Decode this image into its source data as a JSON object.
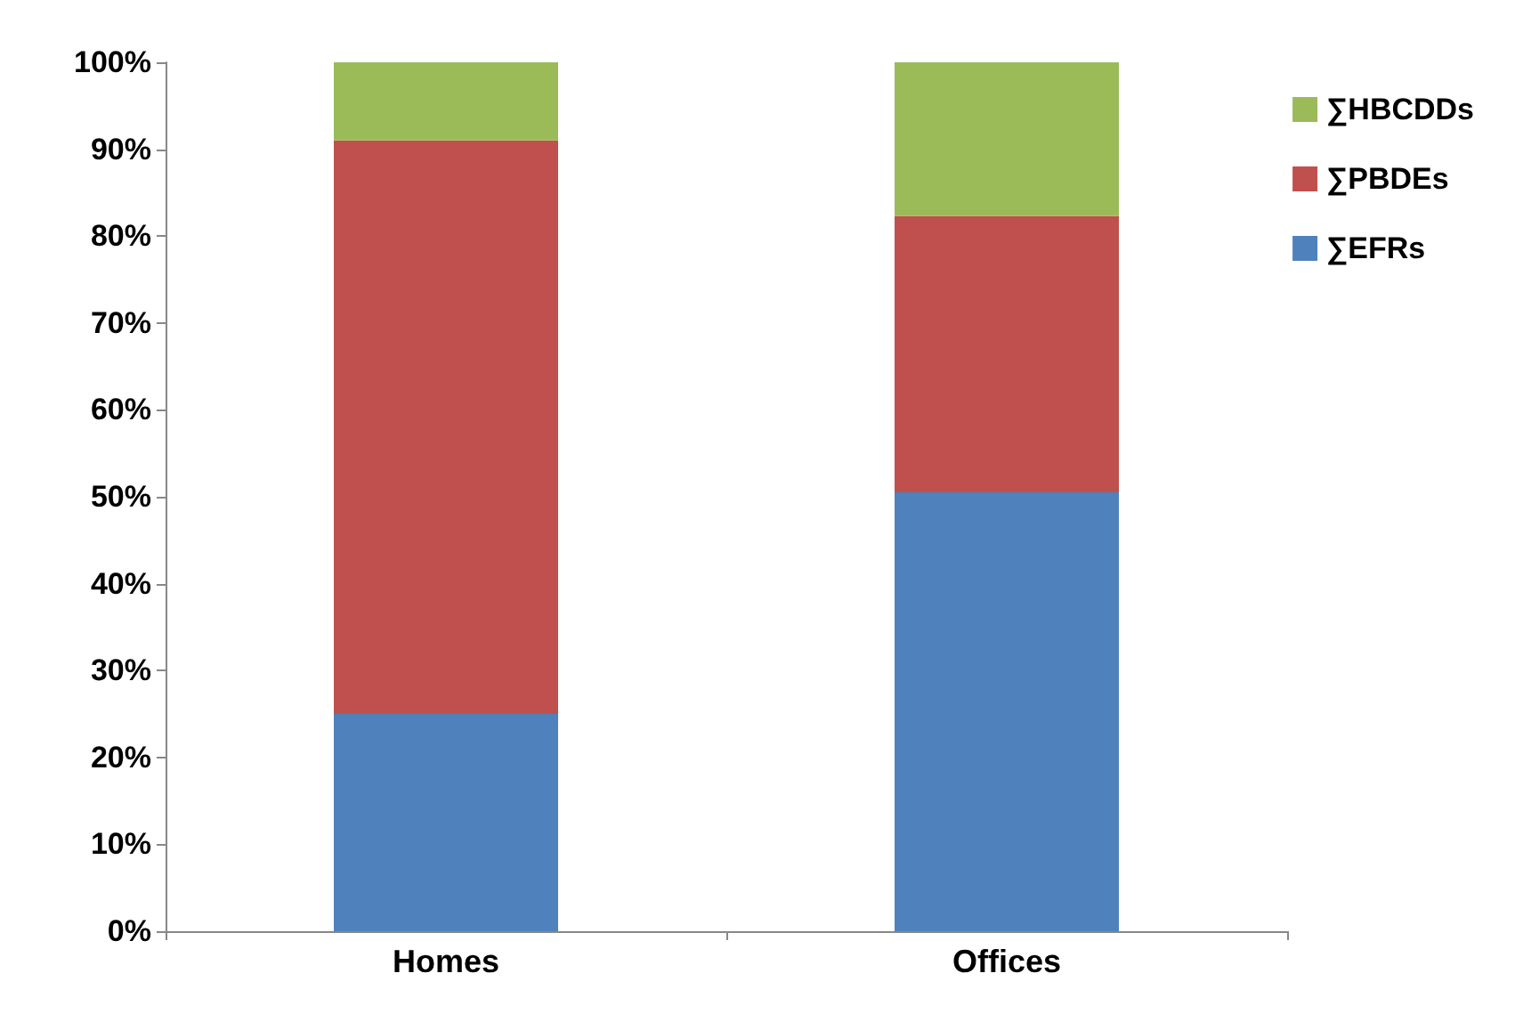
{
  "chart_data": {
    "type": "bar",
    "stacked": true,
    "categories": [
      "Homes",
      "Offices"
    ],
    "series": [
      {
        "name": "∑EFRs",
        "color": "#4f81bd",
        "values": [
          25,
          50.5
        ]
      },
      {
        "name": "∑PBDEs",
        "color": "#c0504d",
        "values": [
          66,
          31.8
        ]
      },
      {
        "name": "∑HBCDDs",
        "color": "#9bbb59",
        "values": [
          9,
          17.7
        ]
      }
    ],
    "ylim": [
      0,
      100
    ],
    "yticks": [
      {
        "value": 0,
        "label": "0%"
      },
      {
        "value": 10,
        "label": "10%"
      },
      {
        "value": 20,
        "label": "20%"
      },
      {
        "value": 30,
        "label": "30%"
      },
      {
        "value": 40,
        "label": "40%"
      },
      {
        "value": 50,
        "label": "50%"
      },
      {
        "value": 60,
        "label": "60%"
      },
      {
        "value": 70,
        "label": "70%"
      },
      {
        "value": 80,
        "label": "80%"
      },
      {
        "value": 90,
        "label": "90%"
      },
      {
        "value": 100,
        "label": "100%"
      }
    ],
    "grid": false,
    "legend": "right"
  }
}
